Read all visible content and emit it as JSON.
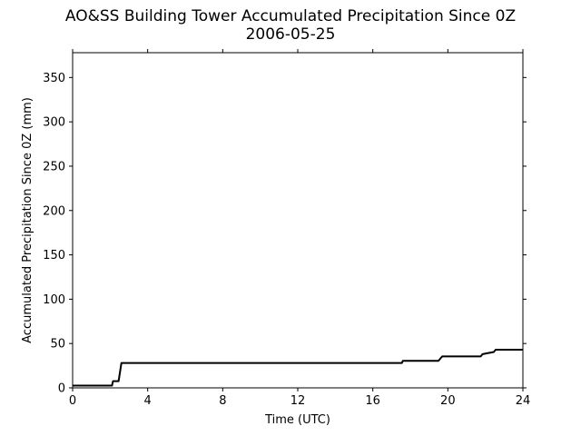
{
  "chart_data": {
    "type": "line",
    "title": "AO&SS Building Tower Accumulated Precipitation Since 0Z",
    "subtitle": "2006-05-25",
    "xlabel": "Time (UTC)",
    "ylabel": "Accumulated Precipitation Since 0Z (mm)",
    "xlim": [
      0,
      24
    ],
    "ylim": [
      0,
      378
    ],
    "xticks": [
      0,
      4,
      8,
      12,
      16,
      20,
      24
    ],
    "yticks": [
      0,
      50,
      100,
      150,
      200,
      250,
      300,
      350
    ],
    "grid": false,
    "line_color": "#000000",
    "x": [
      0,
      2.1,
      2.15,
      2.45,
      2.6,
      17.55,
      17.6,
      19.5,
      19.6,
      19.7,
      21.75,
      21.85,
      22.45,
      22.55,
      24
    ],
    "y": [
      2.5,
      2.5,
      7.5,
      7.5,
      28,
      28,
      30.5,
      30.5,
      33,
      35.5,
      35.5,
      38,
      40.5,
      43,
      43
    ]
  }
}
